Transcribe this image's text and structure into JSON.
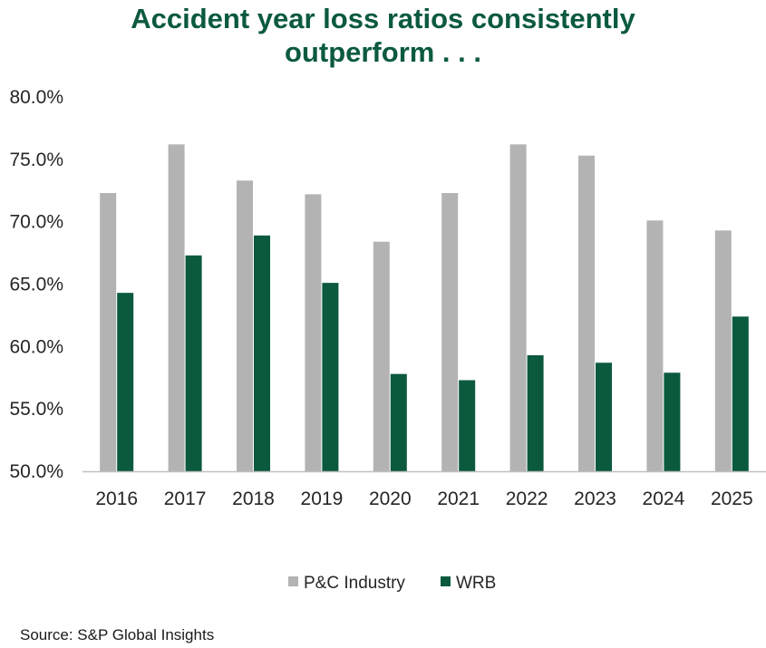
{
  "chart_data": {
    "type": "bar",
    "title": [
      "Accident year loss ratios consistently",
      "outperform . . ."
    ],
    "categories": [
      "2016",
      "2017",
      "2018",
      "2019",
      "2020",
      "2021",
      "2022",
      "2023",
      "2024",
      "2025"
    ],
    "series": [
      {
        "name": "P&C Industry",
        "color": "#b3b3b3",
        "values": [
          72.3,
          76.2,
          73.3,
          72.2,
          68.4,
          72.3,
          76.2,
          75.3,
          70.1,
          69.3
        ]
      },
      {
        "name": "WRB",
        "color": "#0b5a3e",
        "values": [
          64.3,
          67.3,
          68.9,
          65.1,
          57.8,
          57.3,
          59.3,
          58.7,
          57.9,
          62.4
        ]
      }
    ],
    "ylim": [
      50,
      80
    ],
    "yticks": [
      "50.0%",
      "55.0%",
      "60.0%",
      "65.0%",
      "70.0%",
      "75.0%",
      "80.0%"
    ],
    "ytick_values": [
      50,
      55,
      60,
      65,
      70,
      75,
      80
    ],
    "grid": false,
    "legend_position": "bottom"
  },
  "source": "Source: S&P Global Insights"
}
